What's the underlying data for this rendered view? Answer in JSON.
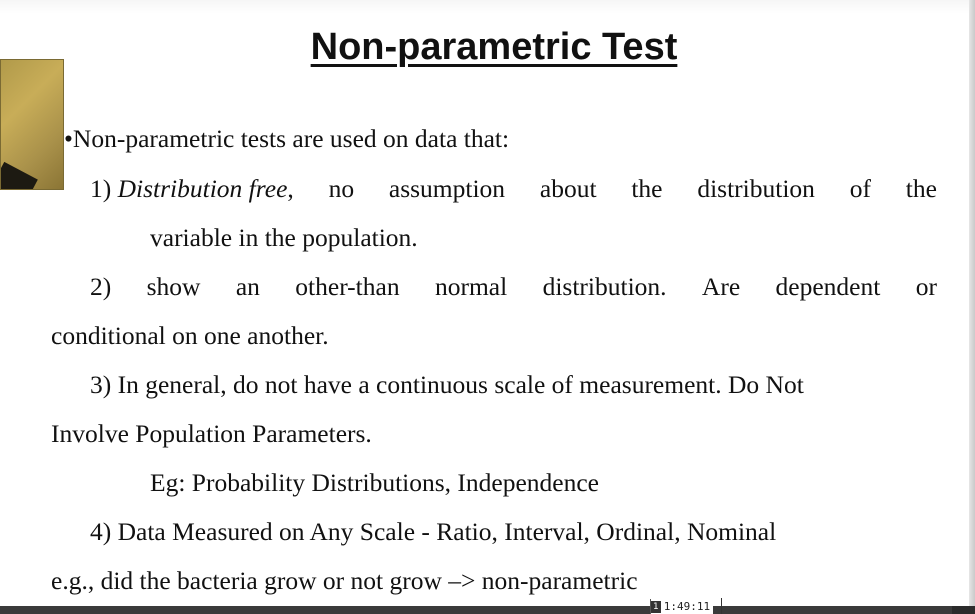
{
  "slide": {
    "title": "Non-parametric Test",
    "intro": "•Non-parametric tests are used on data that:",
    "item1": {
      "number": "1)",
      "italic_lead": "Distribution free",
      "line_words": [
        ",",
        "no",
        "assumption",
        "about",
        "the",
        "distribution",
        "of",
        "the"
      ],
      "continuation": "variable in the population."
    },
    "item2": {
      "line_words": [
        "2)",
        "show",
        "an",
        "other-than",
        "normal",
        "distribution.",
        "Are",
        "dependent",
        "or"
      ],
      "continuation": "conditional on one another."
    },
    "item3": {
      "first_line": "3) In general, do not have a continuous scale of measurement. Do Not",
      "continuation": "Involve Population Parameters."
    },
    "example": "Eg: Probability Distributions, Independence",
    "item4": {
      "first_line": "4) Data Measured on Any Scale - Ratio, Interval, Ordinal, Nominal",
      "continuation": "e.g., did the bacteria grow or not grow –> non-parametric"
    }
  },
  "player": {
    "marker_badge": "1",
    "timestamp": "1:49:11"
  }
}
